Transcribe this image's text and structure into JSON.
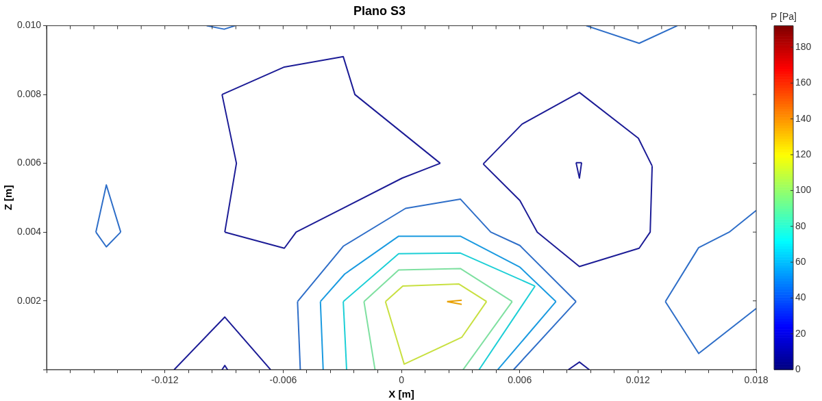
{
  "chart_data": {
    "type": "line",
    "title": "Plano S3",
    "xlabel": "X [m]",
    "ylabel": "Z [m]",
    "clabel": "P [Pa]",
    "xlim": [
      -0.018,
      0.018
    ],
    "ylim": [
      0,
      0.01
    ],
    "clim": [
      0,
      192
    ],
    "cticks": [
      0,
      20,
      40,
      60,
      80,
      100,
      120,
      140,
      160,
      180
    ],
    "grid": false,
    "legend": false,
    "xticks": [
      {
        "value": -0.018,
        "label": null
      },
      {
        "value": -0.0168,
        "label": null
      },
      {
        "value": -0.0156,
        "label": null
      },
      {
        "value": -0.0144,
        "label": null
      },
      {
        "value": -0.0132,
        "label": null
      },
      -0.012,
      {
        "value": -0.0108,
        "label": null
      },
      {
        "value": -0.0096,
        "label": null
      },
      {
        "value": -0.0084,
        "label": null
      },
      {
        "value": -0.0072,
        "label": null
      },
      -0.006,
      {
        "value": -0.0048,
        "label": null
      },
      {
        "value": -0.0036,
        "label": null
      },
      {
        "value": -0.0024,
        "label": null
      },
      {
        "value": -0.0012,
        "label": null
      },
      0,
      {
        "value": 0.0012,
        "label": null
      },
      {
        "value": 0.0024,
        "label": null
      },
      {
        "value": 0.0036,
        "label": null
      },
      {
        "value": 0.0048,
        "label": null
      },
      0.006,
      {
        "value": 0.0072,
        "label": null
      },
      {
        "value": 0.0084,
        "label": null
      },
      {
        "value": 0.0096,
        "label": null
      },
      {
        "value": 0.0108,
        "label": null
      },
      0.012,
      {
        "value": 0.0132,
        "label": null
      },
      {
        "value": 0.0144,
        "label": null
      },
      {
        "value": 0.0156,
        "label": null
      },
      {
        "value": 0.0168,
        "label": null
      },
      0.018
    ],
    "yticks": [
      {
        "value": 0,
        "label": null
      },
      0.002,
      0.004,
      0.006,
      0.008,
      {
        "value": 0.01,
        "label": "0.010"
      }
    ],
    "series": [
      {
        "color": "#1c1c96",
        "x": [
          -0.0091,
          -0.00594,
          -0.00295,
          -0.00236,
          0.00197
        ],
        "values": [
          0.008,
          0.0088,
          0.0091,
          0.008,
          0.006
        ]
      },
      {
        "color": "#1c1c96",
        "x": [
          -0.00896,
          -0.00594,
          -0.00534,
          4e-05,
          0.00197
        ],
        "values": [
          0.004,
          0.00353,
          0.004,
          0.00557,
          0.006
        ]
      },
      {
        "color": "#1c1c96",
        "x": [
          -0.00896,
          -0.00837,
          -0.0091
        ],
        "values": [
          0.004,
          0.006,
          0.008
        ]
      },
      {
        "color": "#1c1c96",
        "x": [
          0.00415,
          0.00612,
          0.00903,
          0.01202,
          0.01272
        ],
        "values": [
          0.00598,
          0.00714,
          0.00806,
          0.00673,
          0.00592
        ]
      },
      {
        "color": "#1c1c96",
        "x": [
          0.00415,
          0.00601,
          0.00689,
          0.00903,
          0.01206,
          0.01262,
          0.01272
        ],
        "values": [
          0.00598,
          0.00492,
          0.004,
          0.003,
          0.00353,
          0.004,
          0.00592
        ]
      },
      {
        "color": "#1c1c96",
        "x": [
          0.00886,
          0.00914
        ],
        "values": [
          0.00602,
          0.00602
        ]
      },
      {
        "color": "#1c1c96",
        "x": [
          0.00886,
          0.00903,
          0.00914
        ],
        "values": [
          0.00602,
          0.00557,
          0.00602
        ]
      },
      {
        "color": "#1c1c96",
        "x": [
          -0.01153,
          -0.00896,
          -0.00664
        ],
        "values": [
          0,
          0.00153,
          0
        ]
      },
      {
        "color": "#1c1c96",
        "x": [
          -0.0091,
          -0.00896,
          -0.00882
        ],
        "values": [
          0,
          0.00012,
          0
        ]
      },
      {
        "color": "#1c1c96",
        "x": [
          0.00847,
          0.00903,
          0.00953
        ],
        "values": [
          0,
          0.00022,
          0
        ]
      },
      {
        "color": "#2e6ec8",
        "x": [
          -0.00988,
          -0.00899,
          -0.00844
        ],
        "values": [
          0.01,
          0.0099,
          0.01
        ]
      },
      {
        "color": "#2e6ec8",
        "x": [
          -0.0155,
          -0.01497,
          -0.01424
        ],
        "values": [
          0.004,
          0.00357,
          0.004
        ]
      },
      {
        "color": "#2e6ec8",
        "x": [
          -0.0155,
          -0.01497,
          -0.01424
        ],
        "values": [
          0.004,
          0.00537,
          0.004
        ]
      },
      {
        "color": "#2e6ec8",
        "x": [
          0.00938,
          0.01206,
          0.01399
        ],
        "values": [
          0.01,
          0.00949,
          0.01
        ]
      },
      {
        "color": "#2e6ec8",
        "x": [
          0.01339,
          0.01508,
          0.01663,
          0.018
        ],
        "values": [
          0.00198,
          0.00355,
          0.004,
          0.00463
        ]
      },
      {
        "color": "#2e6ec8",
        "x": [
          0.01339,
          0.01508,
          0.018
        ],
        "values": [
          0.00198,
          0.00047,
          0.00178
        ]
      },
      {
        "color": "#2e6ec8",
        "x": [
          -0.00527,
          -0.00513
        ],
        "values": [
          0.00198,
          0
        ]
      },
      {
        "color": "#2e6ec8",
        "x": [
          -0.00527,
          -0.00295,
          0.00021,
          0.00299,
          0.00453,
          0.00601,
          0.00886
        ],
        "values": [
          0.00198,
          0.00359,
          0.00469,
          0.00496,
          0.004,
          0.00361,
          0.00198
        ]
      },
      {
        "color": "#2e6ec8",
        "x": [
          0.00569,
          0.00886
        ],
        "values": [
          0,
          0.00198
        ]
      },
      {
        "color": "#1a9ae0",
        "x": [
          -0.00411,
          -0.00397
        ],
        "values": [
          0.00198,
          0
        ]
      },
      {
        "color": "#1a9ae0",
        "x": [
          -0.00411,
          -0.00288,
          -0.00014,
          0.00299,
          0.00601,
          0.00784
        ],
        "values": [
          0.00198,
          0.00278,
          0.00388,
          0.00388,
          0.00298,
          0.00198
        ]
      },
      {
        "color": "#1a9ae0",
        "x": [
          0.00489,
          0.00784
        ],
        "values": [
          0,
          0.00198
        ]
      },
      {
        "color": "#1ccfd6",
        "x": [
          -0.00295,
          -0.00278
        ],
        "values": [
          0.00198,
          0
        ]
      },
      {
        "color": "#1ccfd6",
        "x": [
          -0.00295,
          -0.00014,
          0.00299,
          0.00678
        ],
        "values": [
          0.00198,
          0.00337,
          0.00339,
          0.00243
        ]
      },
      {
        "color": "#1ccfd6",
        "x": [
          0.00394,
          0.00678
        ],
        "values": [
          0,
          0.00243
        ]
      },
      {
        "color": "#7ee0a0",
        "x": [
          -0.0019,
          -0.00134
        ],
        "values": [
          0.00198,
          0
        ]
      },
      {
        "color": "#7ee0a0",
        "x": [
          -0.0019,
          -0.00014,
          0.00299,
          0.00562
        ],
        "values": [
          0.00198,
          0.0029,
          0.00294,
          0.00198
        ]
      },
      {
        "color": "#7ee0a0",
        "x": [
          0.00313,
          0.00562
        ],
        "values": [
          0,
          0.00198
        ]
      },
      {
        "color": "#c8e040",
        "x": [
          -0.00081,
          7e-05,
          0.00292,
          0.00432
        ],
        "values": [
          0.00198,
          0.00243,
          0.00249,
          0.00198
        ]
      },
      {
        "color": "#c8e040",
        "x": [
          -0.00081,
          0.00014,
          0.00306,
          0.00432
        ],
        "values": [
          0.00198,
          0.00016,
          0.00094,
          0.00198
        ]
      },
      {
        "color": "#e8a000",
        "x": [
          0.00232,
          0.00306
        ],
        "values": [
          0.00198,
          0.00202
        ]
      },
      {
        "color": "#e8a000",
        "x": [
          0.00232,
          0.00306
        ],
        "values": [
          0.00198,
          0.0019
        ]
      }
    ]
  }
}
